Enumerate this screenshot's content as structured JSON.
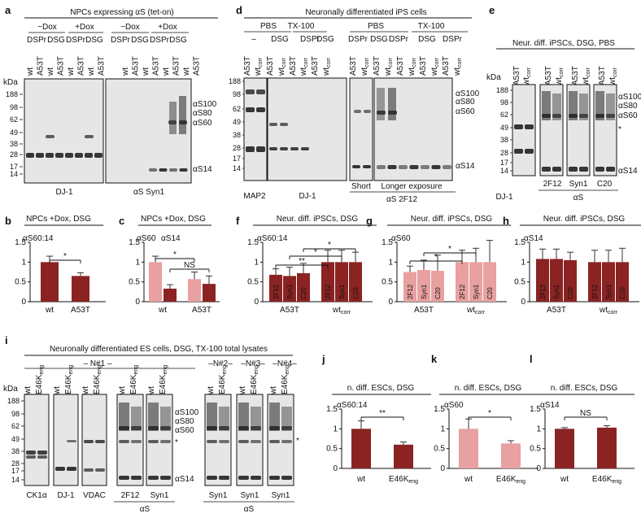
{
  "colors": {
    "dark": "#8b2323",
    "light": "#e8a0a0",
    "blot_bg": "#e6e6e6",
    "band": "#222222"
  },
  "kda_label": "kDa",
  "mw_ladder": [
    "188",
    "98",
    "62",
    "49",
    "38",
    "28",
    "17",
    "14"
  ],
  "a": {
    "letter": "a",
    "title": "NPCs expressing αS (tet-on)",
    "groups": [
      "−Dox",
      "+Dox",
      "−Dox",
      "+Dox"
    ],
    "lanes": [
      "wt",
      "A53T",
      "wt",
      "A53T",
      "wt",
      "A53T",
      "wt",
      "A53T",
      "wt",
      "A53T",
      "wt",
      "A53T",
      "wt",
      "A53T",
      "wt",
      "A53T"
    ],
    "treatments": [
      "DSPr",
      "DSG",
      "DSPr",
      "DSG",
      "DSPr",
      "DSG",
      "DSPr",
      "DSG"
    ],
    "band_labels": [
      "αS100",
      "αS80",
      "αS60",
      "αS14"
    ],
    "blot_labels": [
      "DJ-1",
      "αS Syn1"
    ]
  },
  "d": {
    "letter": "d",
    "title": "Neuronally differentiated iPS cells",
    "groups": [
      "PBS",
      "TX-100",
      "PBS",
      "TX-100"
    ],
    "treatments": [
      "–",
      "DSG",
      "DSPr",
      "DSG",
      "DSPr",
      "DSG",
      "DSPr",
      "DSG",
      "DSPr"
    ],
    "lanes": [
      "A53T",
      "wtcorr",
      "A53T",
      "wtcorr",
      "A53T",
      "wtcorr",
      "A53T",
      "wtcorr",
      "A53T",
      "wtcorr",
      "A53T",
      "wtcorr",
      "A53T",
      "wtcorr",
      "A53T",
      "wtcorr",
      "A53T",
      "wtcorr"
    ],
    "band_labels": [
      "αS100",
      "αS80",
      "αS60",
      "αS14"
    ],
    "blot_labels": [
      "MAP2",
      "DJ-1",
      "Short",
      "Longer exposure",
      "αS 2F12"
    ]
  },
  "e": {
    "letter": "e",
    "title": "Neur. diff. iPSCs, DSG, PBS",
    "lanes": [
      "A53T",
      "wtcorr",
      "A53T",
      "wtcorr",
      "A53T",
      "wtcorr",
      "A53T",
      "wtcorr"
    ],
    "band_labels": [
      "αS100",
      "αS80",
      "αS60",
      "*",
      "αS14"
    ],
    "blot_labels": [
      "DJ-1",
      "2F12",
      "Syn1",
      "C20",
      "αS"
    ]
  },
  "b": {
    "letter": "b",
    "title": "NPCs +Dox, DSG",
    "series_label": "αS60:14",
    "sig": "*",
    "chart_data": {
      "type": "bar",
      "categories": [
        "wt",
        "A53T"
      ],
      "series": [
        {
          "name": "αS60:14",
          "values": [
            1.0,
            0.65
          ],
          "errors": [
            0.15,
            0.08
          ]
        }
      ],
      "ylim": [
        0,
        1.5
      ],
      "yticks": [
        "0",
        "0.5",
        "1",
        "1.5"
      ]
    }
  },
  "c": {
    "letter": "c",
    "title": "NPCs +Dox, DSG",
    "series_labels": [
      "αS60",
      "αS14"
    ],
    "sig": [
      "*",
      "NS"
    ],
    "chart_data": {
      "type": "bar",
      "categories": [
        "wt",
        "A53T"
      ],
      "series": [
        {
          "name": "αS60",
          "values": [
            1.0,
            0.57
          ],
          "errors": [
            0.15,
            0.18
          ]
        },
        {
          "name": "αS14",
          "values": [
            0.33,
            0.45
          ],
          "errors": [
            0.1,
            0.2
          ]
        }
      ],
      "ylim": [
        0,
        1.5
      ],
      "yticks": [
        "0",
        "0.5",
        "1",
        "1.5"
      ]
    }
  },
  "f": {
    "letter": "f",
    "title": "Neur. diff. iPSCs, DSG",
    "series_label": "αS60:14",
    "sig": [
      "*",
      "*",
      "**"
    ],
    "chart_data": {
      "type": "bar",
      "groups": [
        "A53T",
        "wtcorr"
      ],
      "bar_labels": [
        "2F12",
        "Syn1",
        "C20",
        "2F12",
        "Syn1",
        "C20"
      ],
      "values": [
        0.68,
        0.65,
        0.72,
        1.0,
        1.0,
        1.0
      ],
      "errors": [
        0.15,
        0.22,
        0.25,
        0.3,
        0.3,
        0.25
      ],
      "ylim": [
        0,
        1.5
      ],
      "yticks": [
        "0",
        "0.5",
        "1",
        "1.5"
      ]
    }
  },
  "g": {
    "letter": "g",
    "title": "Neur. diff. iPSCs, DSG",
    "series_label": "αS60",
    "sig": [
      "*",
      "*"
    ],
    "chart_data": {
      "type": "bar",
      "groups": [
        "A53T",
        "wtcorr"
      ],
      "bar_labels": [
        "2F12",
        "Syn1",
        "C20",
        "2F12",
        "Syn1",
        "C20"
      ],
      "values": [
        0.75,
        0.8,
        0.78,
        1.0,
        1.0,
        1.0
      ],
      "errors": [
        0.15,
        0.25,
        0.4,
        0.3,
        0.35,
        0.55
      ],
      "ylim": [
        0,
        1.5
      ],
      "yticks": [
        "0",
        "0.5",
        "1",
        "1.5"
      ]
    }
  },
  "h": {
    "letter": "h",
    "title": "Neur. diff. iPSCs, DSG",
    "series_label": "αS14",
    "chart_data": {
      "type": "bar",
      "groups": [
        "A53T",
        "wtcorr"
      ],
      "bar_labels": [
        "2F12",
        "Syn1",
        "C20",
        "2F12",
        "Syn1",
        "C20"
      ],
      "values": [
        1.08,
        1.08,
        1.05,
        1.0,
        1.0,
        1.0
      ],
      "errors": [
        0.25,
        0.25,
        0.2,
        0.3,
        0.3,
        0.35
      ],
      "ylim": [
        0,
        1.5
      ],
      "yticks": [
        "0",
        "0.5",
        "1",
        "1.5"
      ]
    }
  },
  "i": {
    "letter": "i",
    "title": "Neuronally differentiated ES cells, DSG, TX-100 total lysates",
    "clones": [
      "N#1",
      "N#2",
      "N#3",
      "N#4"
    ],
    "lanes": [
      "wt",
      "E46Keng"
    ],
    "band_labels": [
      "αS100",
      "αS80",
      "αS60",
      "*",
      "αS14"
    ],
    "blot_labels": [
      "CK1α",
      "DJ-1",
      "VDAC",
      "2F12",
      "Syn1",
      "Syn1",
      "Syn1",
      "Syn1"
    ],
    "group_labels": [
      "αS",
      "αS"
    ]
  },
  "j": {
    "letter": "j",
    "title": "n. diff. ESCs, DSG",
    "series_label": "αS60:14",
    "sig": "**",
    "chart_data": {
      "type": "bar",
      "categories": [
        "wt",
        "E46Keng"
      ],
      "series": [
        {
          "name": "αS60:14",
          "values": [
            1.0,
            0.6
          ],
          "errors": [
            0.2,
            0.07
          ]
        }
      ],
      "ylim": [
        0,
        1.5
      ],
      "yticks": [
        "0",
        "0.5",
        "1",
        "1.5"
      ]
    }
  },
  "k": {
    "letter": "k",
    "title": "n. diff. ESCs, DSG",
    "series_label": "αS60",
    "sig": "*",
    "chart_data": {
      "type": "bar",
      "categories": [
        "wt",
        "E46Keng"
      ],
      "series": [
        {
          "name": "αS60",
          "values": [
            1.0,
            0.63
          ],
          "errors": [
            0.25,
            0.07
          ]
        }
      ],
      "ylim": [
        0,
        1.5
      ],
      "yticks": [
        "0",
        "0.5",
        "1",
        "1.5"
      ]
    }
  },
  "l": {
    "letter": "l",
    "title": "n. diff. ESCs, DSG",
    "series_label": "αS14",
    "sig": "NS",
    "chart_data": {
      "type": "bar",
      "categories": [
        "wt",
        "E46Keng"
      ],
      "series": [
        {
          "name": "αS14",
          "values": [
            1.0,
            1.03
          ],
          "errors": [
            0.03,
            0.05
          ]
        }
      ],
      "ylim": [
        0,
        1.5
      ],
      "yticks": [
        "0",
        "0.5",
        "1",
        "1.5"
      ]
    }
  }
}
